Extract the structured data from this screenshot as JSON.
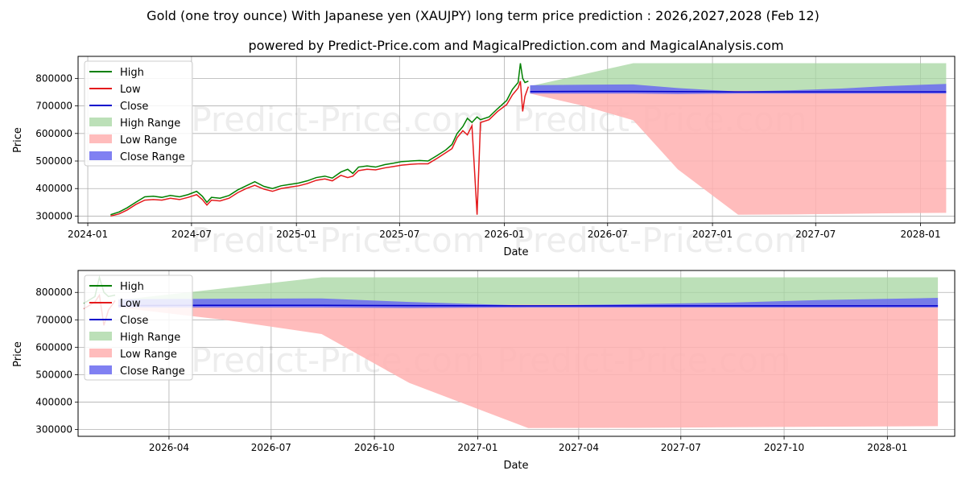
{
  "title": "Gold (one troy ounce) With Japanese yen (XAUJPY) long term price prediction : 2026,2027,2028 (Feb 12)",
  "subtitle": "powered by Predict-Price.com and MagicalPrediction.com and MagicalAnalysis.com",
  "watermark": "Predict-Price.com",
  "colors": {
    "high": "#008000",
    "low": "#e41a1c",
    "close": "#0000cc",
    "high_range": "#a5d6a0",
    "low_range": "#ffb0b0",
    "close_range": "#6a6af0"
  },
  "chart_data": [
    {
      "type": "line",
      "name": "full-history-panel",
      "xlabel": "Date",
      "ylabel": "Price",
      "xlim": [
        "2023-12-15",
        "2028-03-01"
      ],
      "ylim": [
        275000,
        880000
      ],
      "xticks": [
        "2024-01",
        "2024-07",
        "2025-01",
        "2025-07",
        "2026-01",
        "2026-07",
        "2027-01",
        "2027-07",
        "2028-01"
      ],
      "yticks": [
        300000,
        400000,
        500000,
        600000,
        700000,
        800000
      ],
      "yticklabels": [
        "300000",
        "400000",
        "500000",
        "600000",
        "700000",
        "800000"
      ],
      "legend": {
        "position": "top-left",
        "entries": [
          "High",
          "Low",
          "Close",
          "High Range",
          "Low Range",
          "Close Range"
        ]
      },
      "history": {
        "dates": [
          "2024-02-10",
          "2024-02-25",
          "2024-03-10",
          "2024-03-25",
          "2024-04-10",
          "2024-04-25",
          "2024-05-10",
          "2024-05-25",
          "2024-06-10",
          "2024-06-25",
          "2024-07-10",
          "2024-07-20",
          "2024-07-28",
          "2024-08-05",
          "2024-08-20",
          "2024-09-05",
          "2024-09-20",
          "2024-10-05",
          "2024-10-20",
          "2024-11-05",
          "2024-11-20",
          "2024-12-05",
          "2024-12-20",
          "2025-01-05",
          "2025-01-20",
          "2025-02-05",
          "2025-02-20",
          "2025-03-05",
          "2025-03-20",
          "2025-04-01",
          "2025-04-10",
          "2025-04-20",
          "2025-05-05",
          "2025-05-20",
          "2025-06-05",
          "2025-06-20",
          "2025-07-05",
          "2025-07-20",
          "2025-08-05",
          "2025-08-20",
          "2025-09-05",
          "2025-09-20",
          "2025-10-01",
          "2025-10-10",
          "2025-10-20",
          "2025-10-28",
          "2025-11-05",
          "2025-11-14",
          "2025-11-20",
          "2025-12-05",
          "2025-12-20",
          "2026-01-05",
          "2026-01-15",
          "2026-01-25",
          "2026-01-29",
          "2026-02-02",
          "2026-02-06",
          "2026-02-12"
        ],
        "high": [
          305000,
          315000,
          330000,
          350000,
          370000,
          372000,
          368000,
          375000,
          370000,
          378000,
          390000,
          372000,
          350000,
          368000,
          365000,
          375000,
          395000,
          410000,
          425000,
          408000,
          400000,
          410000,
          415000,
          420000,
          428000,
          440000,
          445000,
          438000,
          460000,
          470000,
          455000,
          478000,
          482000,
          478000,
          487000,
          492000,
          498000,
          500000,
          502000,
          500000,
          520000,
          540000,
          560000,
          600000,
          625000,
          655000,
          640000,
          660000,
          650000,
          660000,
          690000,
          720000,
          760000,
          785000,
          855000,
          800000,
          785000,
          790000
        ],
        "low": [
          300000,
          308000,
          322000,
          342000,
          358000,
          360000,
          358000,
          365000,
          360000,
          368000,
          378000,
          360000,
          340000,
          358000,
          355000,
          365000,
          385000,
          400000,
          412000,
          398000,
          390000,
          400000,
          405000,
          410000,
          418000,
          430000,
          435000,
          428000,
          448000,
          440000,
          445000,
          465000,
          470000,
          468000,
          475000,
          480000,
          485000,
          488000,
          490000,
          490000,
          510000,
          530000,
          545000,
          585000,
          610000,
          595000,
          628000,
          305000,
          640000,
          650000,
          680000,
          705000,
          740000,
          765000,
          790000,
          680000,
          735000,
          770000
        ],
        "close": [
          303000,
          311000,
          326000,
          346000,
          364000,
          366000,
          363000,
          370000,
          365000,
          373000,
          384000,
          366000,
          345000,
          363000,
          360000,
          370000,
          390000,
          405000,
          418000,
          403000,
          395000,
          405000,
          410000,
          415000,
          423000,
          435000,
          440000,
          433000,
          454000,
          455000,
          450000,
          471000,
          476000,
          473000,
          481000,
          486000,
          491000,
          494000,
          496000,
          495000,
          515000,
          535000,
          552000,
          592000,
          618000,
          625000,
          634000,
          640000,
          645000,
          655000,
          685000,
          712000,
          750000,
          775000,
          820000,
          740000,
          760000,
          780000
        ]
      },
      "forecast": {
        "dates": [
          "2026-02-15",
          "2026-05-20",
          "2026-08-15",
          "2026-11-01",
          "2027-02-15",
          "2027-05-20",
          "2027-08-15",
          "2027-11-01",
          "2028-02-15"
        ],
        "close": [
          752000,
          753000,
          753000,
          752000,
          751000,
          751000,
          751000,
          751000,
          751000
        ],
        "high_range": [
          [
            760000,
            772000
          ],
          [
            750000,
            815000
          ],
          [
            750000,
            855000
          ],
          [
            750000,
            855000
          ],
          [
            750000,
            855000
          ],
          [
            750000,
            855000
          ],
          [
            750000,
            855000
          ],
          [
            750000,
            855000
          ],
          [
            750000,
            855000
          ]
        ],
        "low_range": [
          [
            745000,
            760000
          ],
          [
            700000,
            755000
          ],
          [
            648000,
            755000
          ],
          [
            470000,
            755000
          ],
          [
            305000,
            755000
          ],
          [
            306000,
            755000
          ],
          [
            308000,
            755000
          ],
          [
            310000,
            755000
          ],
          [
            312000,
            755000
          ]
        ],
        "close_range": [
          [
            745000,
            775000
          ],
          [
            745000,
            777000
          ],
          [
            745000,
            778000
          ],
          [
            743000,
            765000
          ],
          [
            745000,
            752000
          ],
          [
            745000,
            757000
          ],
          [
            745000,
            763000
          ],
          [
            745000,
            772000
          ],
          [
            745000,
            780000
          ]
        ]
      }
    },
    {
      "type": "area",
      "name": "forecast-panel",
      "xlabel": "Date",
      "ylabel": "Price",
      "xlim": [
        "2026-01-10",
        "2028-03-01"
      ],
      "ylim": [
        275000,
        880000
      ],
      "xticks": [
        "2026-04",
        "2026-07",
        "2026-10",
        "2027-01",
        "2027-04",
        "2027-07",
        "2027-10",
        "2028-01"
      ],
      "yticks": [
        300000,
        400000,
        500000,
        600000,
        700000,
        800000
      ],
      "yticklabels": [
        "300000",
        "400000",
        "500000",
        "600000",
        "700000",
        "800000"
      ],
      "legend": {
        "position": "top-left",
        "entries": [
          "High",
          "Low",
          "Close",
          "High Range",
          "Low Range",
          "Close Range"
        ]
      }
    }
  ]
}
